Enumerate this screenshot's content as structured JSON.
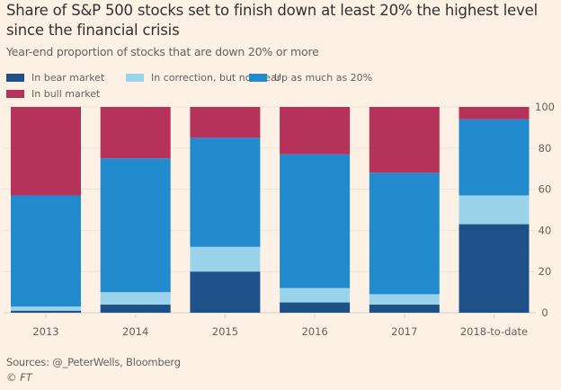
{
  "chart_data": {
    "type": "bar",
    "stacked": true,
    "title": "Share of S&P 500 stocks set to finish down at least 20% the highest level since the financial crisis",
    "subtitle": "Year-end proportion of stocks that are down 20% or more",
    "xlabel": "",
    "ylabel": "",
    "ylim": [
      0,
      100
    ],
    "yticks": [
      0,
      20,
      40,
      60,
      80,
      100
    ],
    "y_axis_side": "right",
    "grid": true,
    "legend_position": "top-left",
    "categories": [
      "2013",
      "2014",
      "2015",
      "2016",
      "2017",
      "2018-to-date"
    ],
    "series": [
      {
        "name": "In bear market",
        "color": "#1f5189",
        "values": [
          1,
          4,
          20,
          5,
          4,
          43
        ]
      },
      {
        "name": "In correction, but not bear",
        "color": "#9ad3ea",
        "values": [
          2,
          6,
          12,
          7,
          5,
          14
        ]
      },
      {
        "name": "Up as much as 20%",
        "color": "#218bcd",
        "values": [
          54,
          65,
          53,
          65,
          59,
          37
        ]
      },
      {
        "name": "In bull market",
        "color": "#b5325a",
        "values": [
          43,
          25,
          15,
          23,
          32,
          6
        ]
      }
    ],
    "source": "Sources: @_PeterWells, Bloomberg",
    "copyright": "© FT"
  }
}
